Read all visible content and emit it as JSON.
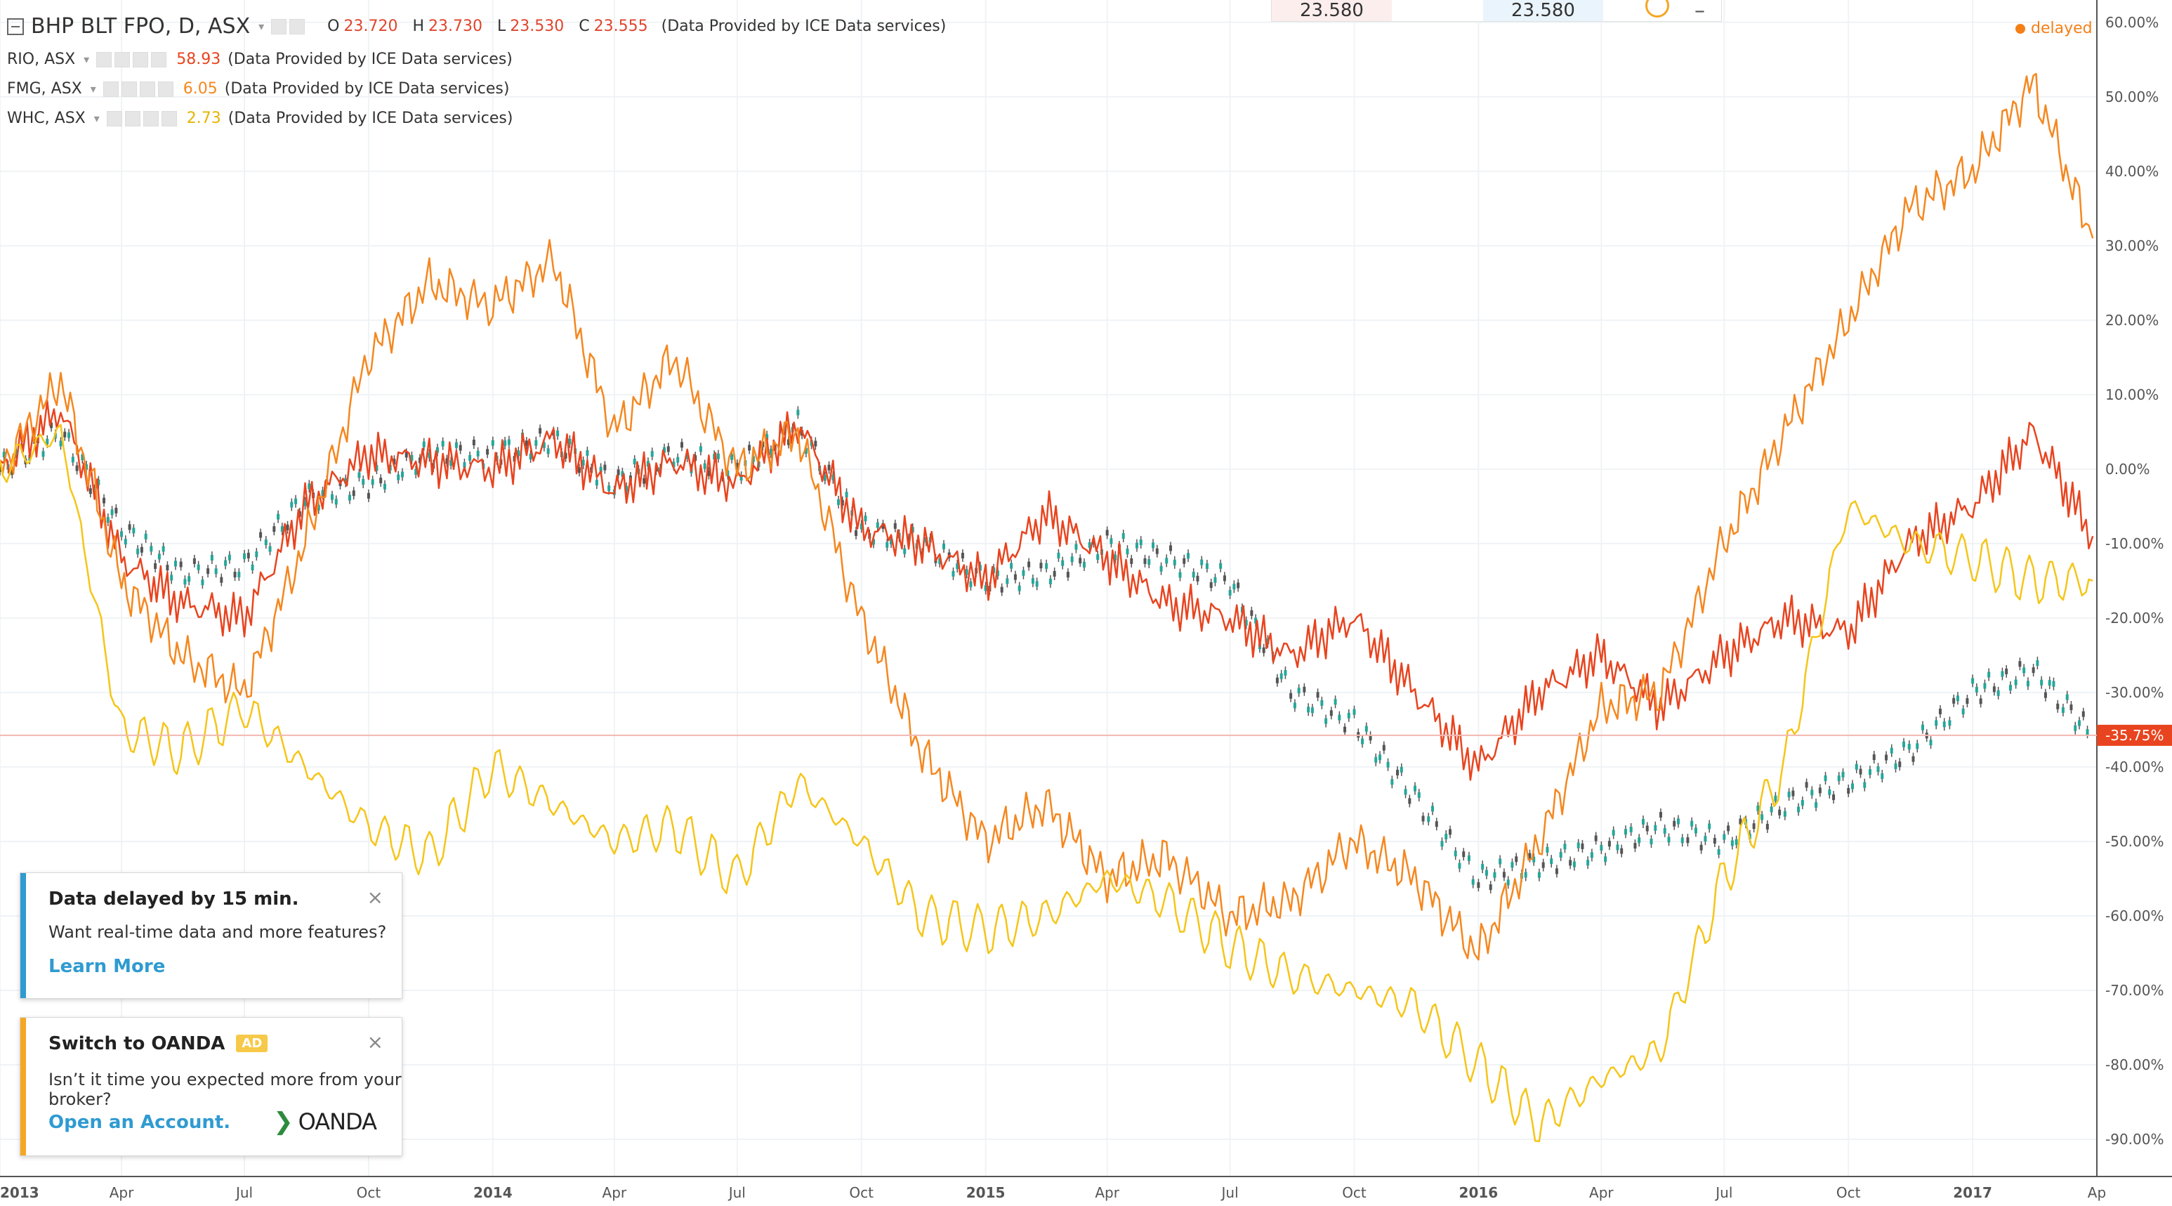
{
  "legend": {
    "main": {
      "symbol": "BHP BLT FPO, D, ASX",
      "o_key": "O",
      "o": "23.720",
      "h_key": "H",
      "h": "23.730",
      "l_key": "L",
      "l": "23.530",
      "c_key": "C",
      "c": "23.555",
      "provider": "(Data Provided by ICE Data services)"
    },
    "compare": [
      {
        "symbol": "RIO, ASX",
        "value": "58.93",
        "provider": "(Data Provided by ICE Data services)",
        "color": "#e8441f"
      },
      {
        "symbol": "FMG, ASX",
        "value": "6.05",
        "provider": "(Data Provided by ICE Data services)",
        "color": "#f5871f"
      },
      {
        "symbol": "WHC, ASX",
        "value": "2.73",
        "provider": "(Data Provided by ICE Data services)",
        "color": "#f5c518"
      }
    ]
  },
  "top_widget": {
    "left_value": "23.580",
    "right_value": "23.580"
  },
  "status": {
    "delayed": "delayed"
  },
  "notices": {
    "delay": {
      "title": "Data delayed by 15 min.",
      "body": "Want real-time data and more features?",
      "link": "Learn More",
      "close": "×",
      "accent": "#2f9bd1"
    },
    "oanda": {
      "title": "Switch to OANDA",
      "badge": "AD",
      "body": "Isn’t it time you expected more from your broker?",
      "link": "Open an Account.",
      "logo": "OANDA",
      "close": "×",
      "accent": "#f5a623"
    }
  },
  "chart_data": {
    "type": "line",
    "ylim": [
      -95,
      63
    ],
    "xlim": [
      "2013-01-01",
      "2017-04-03"
    ],
    "y_ticks": [
      "60.00%",
      "50.00%",
      "40.00%",
      "30.00%",
      "20.00%",
      "10.00%",
      "0.00%",
      "-10.00%",
      "-20.00%",
      "-30.00%",
      "-40.00%",
      "-50.00%",
      "-60.00%",
      "-70.00%",
      "-80.00%",
      "-90.00%"
    ],
    "y_tick_values": [
      60,
      50,
      40,
      30,
      20,
      10,
      0,
      -10,
      -20,
      -30,
      -40,
      -50,
      -60,
      -70,
      -80,
      -90
    ],
    "x_ticks": [
      {
        "label": "2013",
        "date": "2013-01-01",
        "bold": true
      },
      {
        "label": "Apr",
        "date": "2013-04-01"
      },
      {
        "label": "Jul",
        "date": "2013-07-01"
      },
      {
        "label": "Oct",
        "date": "2013-10-01"
      },
      {
        "label": "2014",
        "date": "2014-01-01",
        "bold": true
      },
      {
        "label": "Apr",
        "date": "2014-04-01"
      },
      {
        "label": "Jul",
        "date": "2014-07-01"
      },
      {
        "label": "Oct",
        "date": "2014-10-01"
      },
      {
        "label": "2015",
        "date": "2015-01-01",
        "bold": true
      },
      {
        "label": "Apr",
        "date": "2015-04-01"
      },
      {
        "label": "Jul",
        "date": "2015-07-01"
      },
      {
        "label": "Oct",
        "date": "2015-10-01"
      },
      {
        "label": "2016",
        "date": "2016-01-01",
        "bold": true
      },
      {
        "label": "Apr",
        "date": "2016-04-01"
      },
      {
        "label": "Jul",
        "date": "2016-07-01"
      },
      {
        "label": "Oct",
        "date": "2016-10-01"
      },
      {
        "label": "2017",
        "date": "2017-01-01",
        "bold": true
      },
      {
        "label": "Ap",
        "date": "2017-04-03"
      }
    ],
    "current_line": {
      "value": -35.75,
      "label": "-35.75%",
      "color": "#e8441f"
    },
    "grid": true,
    "series": [
      {
        "name": "BHP BLT FPO, D, ASX",
        "style": "candles",
        "color": "#333333",
        "x": [
          "2013-01-01",
          "2013-02-15",
          "2013-04-01",
          "2013-05-15",
          "2013-07-01",
          "2013-08-15",
          "2013-10-01",
          "2013-11-15",
          "2014-01-01",
          "2014-02-15",
          "2014-04-01",
          "2014-05-15",
          "2014-07-01",
          "2014-08-15",
          "2014-10-01",
          "2014-11-15",
          "2015-01-01",
          "2015-02-15",
          "2015-04-01",
          "2015-05-15",
          "2015-07-01",
          "2015-08-15",
          "2015-10-01",
          "2015-11-15",
          "2016-01-01",
          "2016-02-15",
          "2016-04-01",
          "2016-05-15",
          "2016-07-01",
          "2016-08-15",
          "2016-10-01",
          "2016-11-15",
          "2017-01-01",
          "2017-02-15",
          "2017-03-31"
        ],
        "values": [
          0,
          5,
          -8,
          -14,
          -13,
          -4,
          -2,
          2,
          2,
          4,
          -2,
          2,
          0,
          6,
          -8,
          -10,
          -15,
          -14,
          -10,
          -12,
          -15,
          -30,
          -34,
          -44,
          -55,
          -53,
          -51,
          -48,
          -50,
          -45,
          -42,
          -38,
          -30,
          -27,
          -35.75
        ]
      },
      {
        "name": "RIO, ASX",
        "style": "line",
        "color": "#e8441f",
        "x": [
          "2013-01-01",
          "2013-02-15",
          "2013-04-01",
          "2013-05-15",
          "2013-07-01",
          "2013-08-15",
          "2013-10-01",
          "2013-11-15",
          "2014-01-01",
          "2014-02-15",
          "2014-04-01",
          "2014-05-15",
          "2014-07-01",
          "2014-08-15",
          "2014-10-01",
          "2014-11-15",
          "2015-01-01",
          "2015-02-15",
          "2015-04-01",
          "2015-05-15",
          "2015-07-01",
          "2015-08-15",
          "2015-10-01",
          "2015-11-15",
          "2016-01-01",
          "2016-02-15",
          "2016-04-01",
          "2016-05-15",
          "2016-07-01",
          "2016-08-15",
          "2016-10-01",
          "2016-11-15",
          "2017-01-01",
          "2017-02-15",
          "2017-03-31"
        ],
        "values": [
          0,
          8,
          -12,
          -18,
          -20,
          -5,
          2,
          1,
          0,
          4,
          -3,
          1,
          -2,
          6,
          -8,
          -10,
          -15,
          -6,
          -12,
          -18,
          -20,
          -25,
          -20,
          -30,
          -40,
          -30,
          -25,
          -32,
          -25,
          -20,
          -22,
          -10,
          -5,
          5,
          -9
        ]
      },
      {
        "name": "FMG, ASX",
        "style": "line",
        "color": "#f5871f",
        "x": [
          "2013-01-01",
          "2013-02-15",
          "2013-04-01",
          "2013-05-15",
          "2013-07-01",
          "2013-08-15",
          "2013-10-01",
          "2013-11-15",
          "2014-01-01",
          "2014-02-15",
          "2014-04-01",
          "2014-05-15",
          "2014-07-01",
          "2014-08-15",
          "2014-10-01",
          "2014-11-15",
          "2015-01-01",
          "2015-02-15",
          "2015-04-01",
          "2015-05-15",
          "2015-07-01",
          "2015-08-15",
          "2015-10-01",
          "2015-11-15",
          "2016-01-01",
          "2016-02-15",
          "2016-04-01",
          "2016-05-15",
          "2016-07-01",
          "2016-08-15",
          "2016-10-01",
          "2016-11-15",
          "2017-01-01",
          "2017-02-15",
          "2017-03-31"
        ],
        "values": [
          0,
          12,
          -15,
          -25,
          -30,
          -10,
          15,
          25,
          22,
          28,
          5,
          15,
          0,
          5,
          -20,
          -38,
          -50,
          -45,
          -55,
          -52,
          -60,
          -58,
          -50,
          -55,
          -65,
          -50,
          -32,
          -30,
          -10,
          5,
          20,
          35,
          40,
          52,
          31
        ]
      },
      {
        "name": "WHC, ASX",
        "style": "line",
        "color": "#f5c518",
        "x": [
          "2013-01-01",
          "2013-02-15",
          "2013-04-01",
          "2013-05-15",
          "2013-07-01",
          "2013-08-15",
          "2013-10-01",
          "2013-11-15",
          "2014-01-01",
          "2014-02-15",
          "2014-04-01",
          "2014-05-15",
          "2014-07-01",
          "2014-08-15",
          "2014-10-01",
          "2014-11-15",
          "2015-01-01",
          "2015-02-15",
          "2015-04-01",
          "2015-05-15",
          "2015-07-01",
          "2015-08-15",
          "2015-10-01",
          "2015-11-15",
          "2016-01-01",
          "2016-02-15",
          "2016-04-01",
          "2016-05-15",
          "2016-07-01",
          "2016-08-15",
          "2016-10-01",
          "2016-11-15",
          "2017-01-01",
          "2017-02-15",
          "2017-03-31"
        ],
        "values": [
          0,
          5,
          -35,
          -38,
          -32,
          -40,
          -48,
          -52,
          -40,
          -45,
          -50,
          -48,
          -55,
          -42,
          -50,
          -60,
          -62,
          -60,
          -55,
          -58,
          -64,
          -68,
          -70,
          -72,
          -80,
          -88,
          -82,
          -78,
          -55,
          -40,
          -5,
          -10,
          -12,
          -15,
          -15
        ]
      }
    ]
  }
}
